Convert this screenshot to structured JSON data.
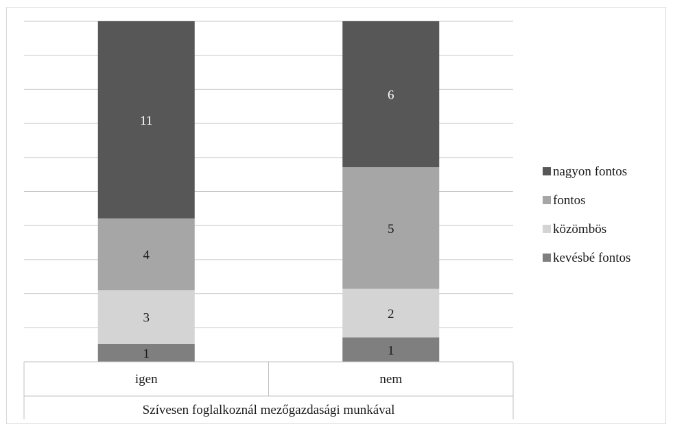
{
  "chart_data": {
    "type": "bar",
    "stacked": "percent",
    "categories": [
      "igen",
      "nem"
    ],
    "group_label": "Szívesen foglalkoznál mezőgazdasági munkával",
    "series": [
      {
        "name": "kevésbé fontos",
        "color": "#7f7f7f",
        "label_color": "#1a1a1a",
        "values": [
          1,
          1
        ]
      },
      {
        "name": "közömbös",
        "color": "#d4d4d4",
        "label_color": "#1a1a1a",
        "values": [
          3,
          2
        ]
      },
      {
        "name": "fontos",
        "color": "#a6a6a6",
        "label_color": "#1a1a1a",
        "values": [
          4,
          5
        ]
      },
      {
        "name": "nagyon fontos",
        "color": "#575757",
        "label_color": "#ffffff",
        "values": [
          11,
          6
        ]
      }
    ],
    "legend_order": [
      "nagyon fontos",
      "fontos",
      "közömbös",
      "kevésbé fontos"
    ],
    "legend_position": "right",
    "grid": true,
    "ylim": [
      0,
      100
    ]
  }
}
